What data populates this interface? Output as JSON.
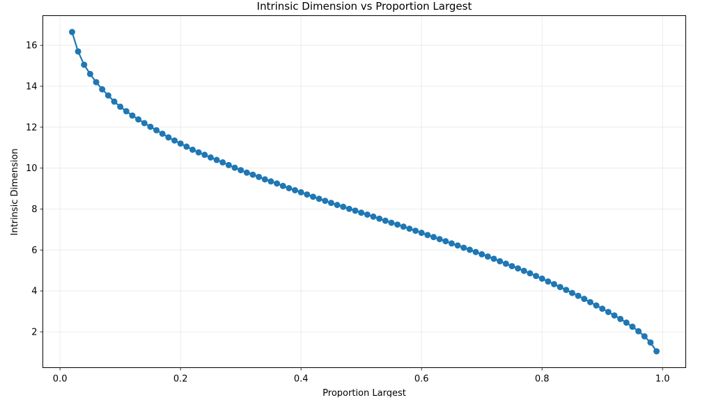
{
  "chart_data": {
    "type": "line",
    "title": "Intrinsic Dimension vs Proportion Largest",
    "xlabel": "Proportion Largest",
    "ylabel": "Intrinsic Dimension",
    "xlim": [
      -0.0285,
      1.0385
    ],
    "ylim": [
      0.25,
      17.45
    ],
    "xticks": [
      0.0,
      0.2,
      0.4,
      0.6,
      0.8,
      1.0
    ],
    "xtick_labels": [
      "0.0",
      "0.2",
      "0.4",
      "0.6",
      "0.8",
      "1.0"
    ],
    "yticks": [
      2,
      4,
      6,
      8,
      10,
      12,
      14,
      16
    ],
    "ytick_labels": [
      "2",
      "4",
      "6",
      "8",
      "10",
      "12",
      "14",
      "16"
    ],
    "grid": true,
    "legend": "none",
    "series": [
      {
        "color": "#1f77b4",
        "marker": "circle",
        "x": [
          0.02,
          0.03,
          0.04,
          0.05,
          0.06,
          0.07,
          0.08,
          0.09,
          0.1,
          0.11,
          0.12,
          0.13,
          0.14,
          0.15,
          0.16,
          0.17,
          0.18,
          0.19,
          0.2,
          0.21,
          0.22,
          0.23,
          0.24,
          0.25,
          0.26,
          0.27,
          0.28,
          0.29,
          0.3,
          0.31,
          0.32,
          0.33,
          0.34,
          0.35,
          0.36,
          0.37,
          0.38,
          0.39,
          0.4,
          0.41,
          0.42,
          0.43,
          0.44,
          0.45,
          0.46,
          0.47,
          0.48,
          0.49,
          0.5,
          0.51,
          0.52,
          0.53,
          0.54,
          0.55,
          0.56,
          0.57,
          0.58,
          0.59,
          0.6,
          0.61,
          0.62,
          0.63,
          0.64,
          0.65,
          0.66,
          0.67,
          0.68,
          0.69,
          0.7,
          0.71,
          0.72,
          0.73,
          0.74,
          0.75,
          0.76,
          0.77,
          0.78,
          0.79,
          0.8,
          0.81,
          0.82,
          0.83,
          0.84,
          0.85,
          0.86,
          0.87,
          0.88,
          0.89,
          0.9,
          0.91,
          0.92,
          0.93,
          0.94,
          0.95,
          0.96,
          0.97,
          0.98,
          0.99
        ],
        "y": [
          16.65,
          15.7,
          15.05,
          14.6,
          14.2,
          13.85,
          13.55,
          13.25,
          13.0,
          12.78,
          12.57,
          12.38,
          12.2,
          12.02,
          11.85,
          11.68,
          11.5,
          11.35,
          11.2,
          11.05,
          10.9,
          10.77,
          10.65,
          10.52,
          10.4,
          10.28,
          10.15,
          10.02,
          9.9,
          9.78,
          9.68,
          9.57,
          9.45,
          9.35,
          9.25,
          9.13,
          9.02,
          8.92,
          8.82,
          8.71,
          8.6,
          8.5,
          8.4,
          8.3,
          8.2,
          8.11,
          8.01,
          7.92,
          7.82,
          7.73,
          7.63,
          7.53,
          7.43,
          7.33,
          7.24,
          7.14,
          7.04,
          6.94,
          6.84,
          6.73,
          6.63,
          6.53,
          6.43,
          6.32,
          6.22,
          6.11,
          6.01,
          5.9,
          5.79,
          5.68,
          5.57,
          5.45,
          5.33,
          5.21,
          5.1,
          4.98,
          4.86,
          4.73,
          4.6,
          4.46,
          4.33,
          4.19,
          4.05,
          3.9,
          3.76,
          3.61,
          3.45,
          3.29,
          3.13,
          2.97,
          2.8,
          2.63,
          2.45,
          2.25,
          2.03,
          1.78,
          1.48,
          1.05
        ]
      }
    ]
  }
}
